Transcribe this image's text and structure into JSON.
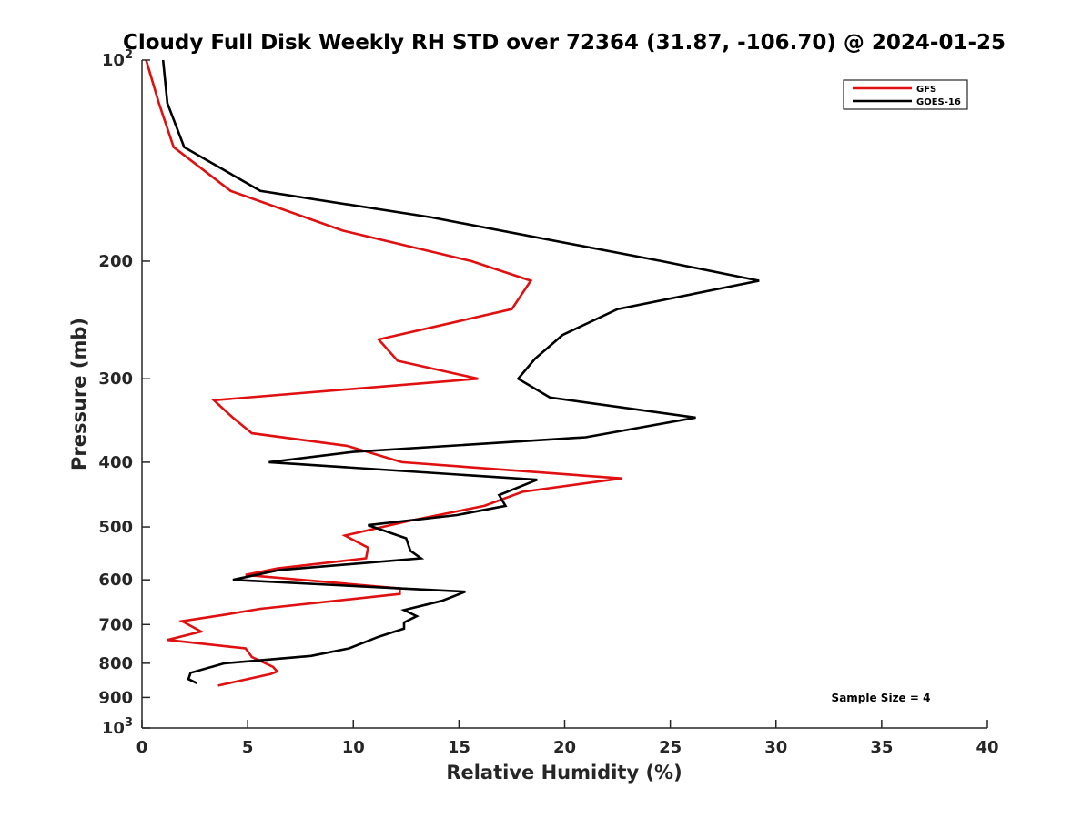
{
  "chart_data": {
    "type": "line",
    "title": "Cloudy Full Disk Weekly RH STD over 72364 (31.87, -106.70) @ 2024-01-25",
    "xlabel": "Relative Humidity (%)",
    "ylabel": "Pressure (mb)",
    "xlim": [
      0,
      40
    ],
    "ylim": [
      100,
      1000
    ],
    "yscale": "log",
    "y_reversed": true,
    "grid": false,
    "legend_position": "top-right",
    "x_ticks": [
      "0",
      "5",
      "10",
      "15",
      "20",
      "25",
      "30",
      "35",
      "40"
    ],
    "x_tick_values": [
      0,
      5,
      10,
      15,
      20,
      25,
      30,
      35,
      40
    ],
    "y_ticks": [
      {
        "value": 100,
        "base": "10",
        "sup": "2"
      },
      {
        "value": 200,
        "base": "200",
        "sup": ""
      },
      {
        "value": 300,
        "base": "300",
        "sup": ""
      },
      {
        "value": 400,
        "base": "400",
        "sup": ""
      },
      {
        "value": 500,
        "base": "500",
        "sup": ""
      },
      {
        "value": 600,
        "base": "600",
        "sup": ""
      },
      {
        "value": 700,
        "base": "700",
        "sup": ""
      },
      {
        "value": 800,
        "base": "800",
        "sup": ""
      },
      {
        "value": 900,
        "base": "900",
        "sup": ""
      },
      {
        "value": 1000,
        "base": "10",
        "sup": "3"
      }
    ],
    "series": [
      {
        "name": "GFS",
        "color": "#e01010",
        "points": [
          [
            0.2,
            100
          ],
          [
            0.8,
            116
          ],
          [
            1.5,
            135
          ],
          [
            4.2,
            157
          ],
          [
            9.5,
            180
          ],
          [
            15.6,
            200
          ],
          [
            18.4,
            214
          ],
          [
            17.5,
            236
          ],
          [
            11.2,
            262
          ],
          [
            12.1,
            282
          ],
          [
            15.9,
            300
          ],
          [
            3.4,
            323
          ],
          [
            4.3,
            343
          ],
          [
            5.2,
            362
          ],
          [
            9.7,
            378
          ],
          [
            12.3,
            400
          ],
          [
            22.7,
            423
          ],
          [
            18.0,
            443
          ],
          [
            16.2,
            465
          ],
          [
            12.6,
            490
          ],
          [
            9.6,
            515
          ],
          [
            10.7,
            537
          ],
          [
            10.6,
            557
          ],
          [
            6.4,
            577
          ],
          [
            4.9,
            590
          ],
          [
            12.2,
            618
          ],
          [
            12.2,
            630
          ],
          [
            5.6,
            663
          ],
          [
            4.0,
            676
          ],
          [
            1.9,
            692
          ],
          [
            2.8,
            717
          ],
          [
            1.2,
            738
          ],
          [
            4.9,
            760
          ],
          [
            5.2,
            783
          ],
          [
            6.2,
            810
          ],
          [
            6.4,
            823
          ],
          [
            6.1,
            830
          ],
          [
            3.6,
            864
          ]
        ]
      },
      {
        "name": "GOES-16",
        "color": "#000000",
        "points": [
          [
            1.0,
            100
          ],
          [
            1.2,
            116
          ],
          [
            2.0,
            135
          ],
          [
            5.6,
            157
          ],
          [
            13.7,
            172
          ],
          [
            24.6,
            200
          ],
          [
            29.2,
            214
          ],
          [
            22.5,
            236
          ],
          [
            19.9,
            258
          ],
          [
            18.6,
            280
          ],
          [
            17.8,
            300
          ],
          [
            19.3,
            320
          ],
          [
            26.2,
            343
          ],
          [
            21.0,
            367
          ],
          [
            10.0,
            386
          ],
          [
            6.0,
            400
          ],
          [
            18.7,
            425
          ],
          [
            16.9,
            448
          ],
          [
            17.2,
            465
          ],
          [
            14.9,
            480
          ],
          [
            10.7,
            497
          ],
          [
            12.5,
            520
          ],
          [
            12.7,
            543
          ],
          [
            13.2,
            557
          ],
          [
            6.5,
            580
          ],
          [
            4.3,
            600
          ],
          [
            15.3,
            625
          ],
          [
            14.2,
            645
          ],
          [
            12.4,
            666
          ],
          [
            13.0,
            680
          ],
          [
            12.4,
            695
          ],
          [
            12.4,
            710
          ],
          [
            11.2,
            730
          ],
          [
            9.8,
            760
          ],
          [
            8.0,
            780
          ],
          [
            3.9,
            800
          ],
          [
            2.3,
            827
          ],
          [
            2.2,
            845
          ],
          [
            2.6,
            857
          ]
        ]
      }
    ],
    "annotation": "Sample Size = 4"
  }
}
